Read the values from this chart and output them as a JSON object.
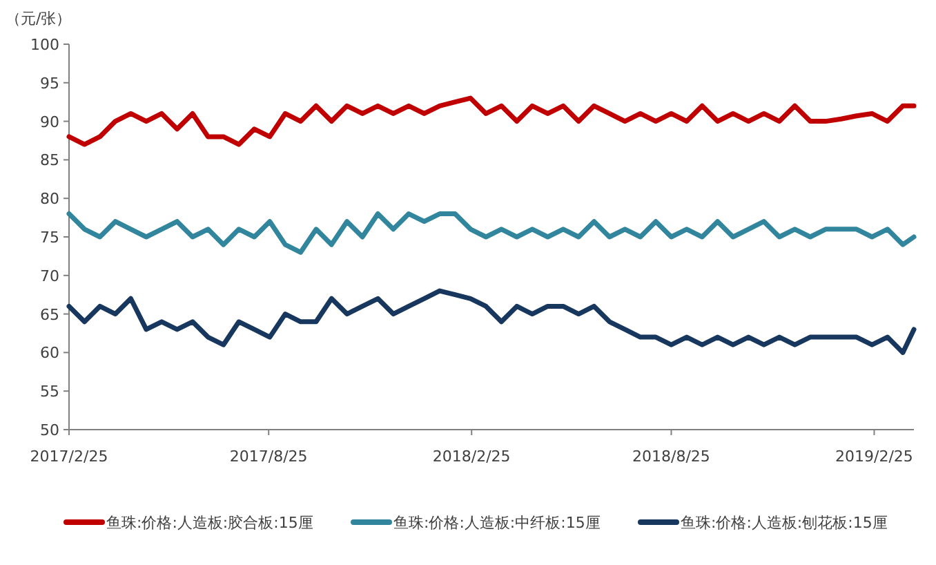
{
  "chart_data": {
    "type": "line",
    "ylabel": "（元/张）",
    "x": [
      "2017-02-25",
      "2017-03-11",
      "2017-03-25",
      "2017-04-08",
      "2017-04-22",
      "2017-05-06",
      "2017-05-20",
      "2017-06-03",
      "2017-06-17",
      "2017-07-01",
      "2017-07-15",
      "2017-07-29",
      "2017-08-12",
      "2017-08-26",
      "2017-09-09",
      "2017-09-23",
      "2017-10-07",
      "2017-10-21",
      "2017-11-04",
      "2017-11-18",
      "2017-12-02",
      "2017-12-16",
      "2017-12-30",
      "2018-01-13",
      "2018-01-27",
      "2018-02-10",
      "2018-02-24",
      "2018-03-10",
      "2018-03-24",
      "2018-04-07",
      "2018-04-21",
      "2018-05-05",
      "2018-05-19",
      "2018-06-02",
      "2018-06-16",
      "2018-06-30",
      "2018-07-14",
      "2018-07-28",
      "2018-08-11",
      "2018-08-25",
      "2018-09-08",
      "2018-09-22",
      "2018-10-06",
      "2018-10-20",
      "2018-11-03",
      "2018-11-17",
      "2018-12-01",
      "2018-12-15",
      "2018-12-29",
      "2019-01-12",
      "2019-01-26",
      "2019-02-09",
      "2019-02-23",
      "2019-03-09",
      "2019-03-23",
      "2019-04-02"
    ],
    "xlim": [
      "2017-02-25",
      "2019-04-02"
    ],
    "xticks": [
      {
        "value": "2017-02-25",
        "label": "2017/2/25"
      },
      {
        "value": "2017-08-25",
        "label": "2017/8/25"
      },
      {
        "value": "2018-02-25",
        "label": "2018/2/25"
      },
      {
        "value": "2018-08-25",
        "label": "2018/8/25"
      },
      {
        "value": "2019-02-25",
        "label": "2019/2/25"
      }
    ],
    "ylim": [
      50,
      100
    ],
    "yticks": [
      50,
      55,
      60,
      65,
      70,
      75,
      80,
      85,
      90,
      95,
      100
    ],
    "legend": "bottom",
    "series": [
      {
        "name": "鱼珠:价格:人造板:胶合板:15厘",
        "color": "#c00000",
        "values": [
          88,
          87,
          88,
          90,
          91,
          90,
          91,
          89,
          91,
          88,
          88,
          87,
          89,
          88,
          91,
          90,
          92,
          90,
          92,
          91,
          92,
          91,
          92,
          91,
          92,
          92.5,
          93,
          91,
          92,
          90,
          92,
          91,
          92,
          90,
          92,
          91,
          90,
          91,
          90,
          91,
          90,
          92,
          90,
          91,
          90,
          91,
          90,
          92,
          90,
          90,
          90.3,
          90.7,
          91,
          90,
          92,
          92
        ]
      },
      {
        "name": "鱼珠:价格:人造板:中纤板:15厘",
        "color": "#31859c",
        "values": [
          78,
          76,
          75,
          77,
          76,
          75,
          76,
          77,
          75,
          76,
          74,
          76,
          75,
          77,
          74,
          73,
          76,
          74,
          77,
          75,
          78,
          76,
          78,
          77,
          78,
          78,
          76,
          75,
          76,
          75,
          76,
          75,
          76,
          75,
          77,
          75,
          76,
          75,
          77,
          75,
          76,
          75,
          77,
          75,
          76,
          77,
          75,
          76,
          75,
          76,
          76,
          76,
          75,
          76,
          74,
          75
        ]
      },
      {
        "name": "鱼珠:价格:人造板:刨花板:15厘",
        "color": "#17375e",
        "values": [
          66,
          64,
          66,
          65,
          67,
          63,
          64,
          63,
          64,
          62,
          61,
          64,
          63,
          62,
          65,
          64,
          64,
          67,
          65,
          66,
          67,
          65,
          66,
          67,
          68,
          67.5,
          67,
          66,
          64,
          66,
          65,
          66,
          66,
          65,
          66,
          64,
          63,
          62,
          62,
          61,
          62,
          61,
          62,
          61,
          62,
          61,
          62,
          61,
          62,
          62,
          62,
          62,
          61,
          62,
          60,
          63
        ]
      }
    ]
  }
}
